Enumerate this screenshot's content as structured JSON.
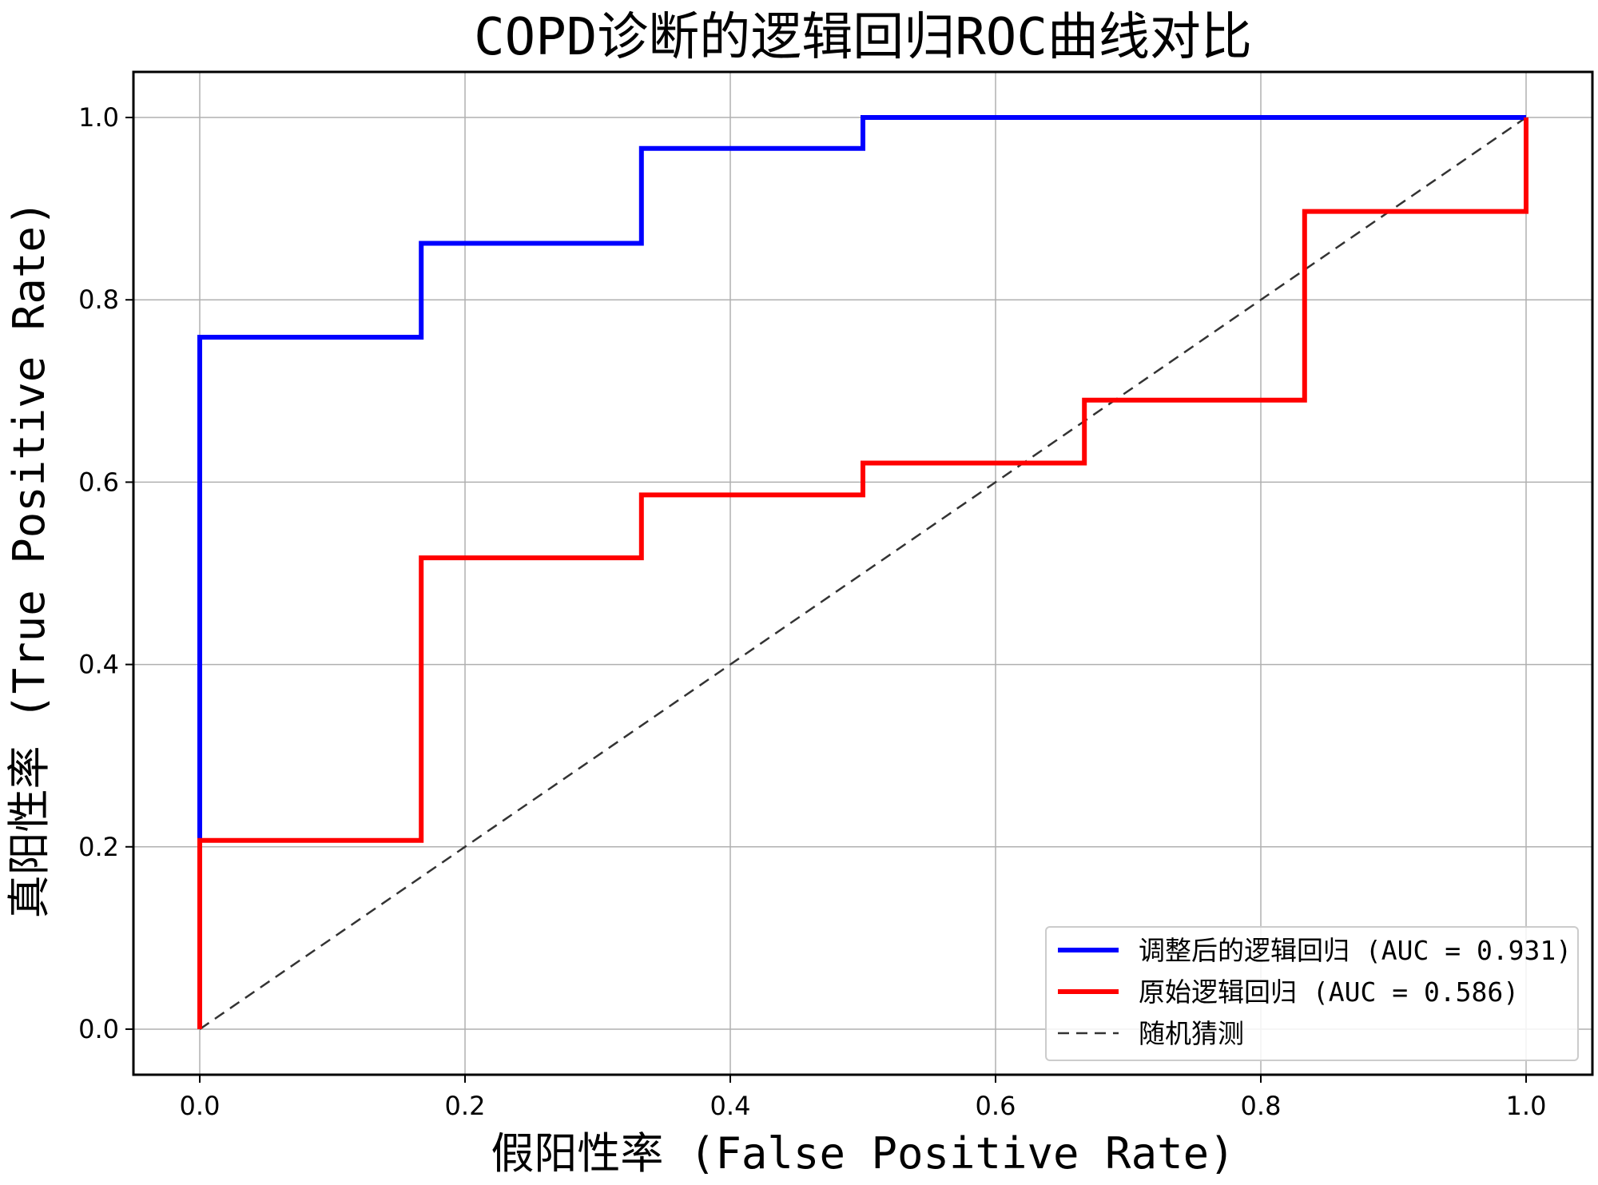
{
  "chart_data": {
    "type": "line",
    "title": "COPD诊断的逻辑回归ROC曲线对比",
    "xlabel": "假阳性率 (False Positive Rate)",
    "ylabel": "真阳性率 (True Positive Rate)",
    "xlim": [
      -0.05,
      1.05
    ],
    "ylim": [
      -0.05,
      1.05
    ],
    "xticks": [
      "0.0",
      "0.2",
      "0.4",
      "0.6",
      "0.8",
      "1.0"
    ],
    "yticks": [
      "0.0",
      "0.2",
      "0.4",
      "0.6",
      "0.8",
      "1.0"
    ],
    "grid": true,
    "legend_position": "lower-right",
    "series": [
      {
        "name": "调整后的逻辑回归 (AUC = 0.931)",
        "color": "#0000ff",
        "style": "solid",
        "x": [
          0,
          0,
          0,
          0.167,
          0.167,
          0.333,
          0.333,
          0.5,
          0.5,
          1.0
        ],
        "y": [
          0,
          0.207,
          0.759,
          0.759,
          0.862,
          0.862,
          0.966,
          0.966,
          1.0,
          1.0
        ]
      },
      {
        "name": "原始逻辑回归 (AUC = 0.586)",
        "color": "#ff0000",
        "style": "solid",
        "x": [
          0,
          0,
          0.167,
          0.167,
          0.333,
          0.333,
          0.5,
          0.5,
          0.667,
          0.667,
          0.833,
          0.833,
          1.0,
          1.0
        ],
        "y": [
          0,
          0.207,
          0.207,
          0.517,
          0.517,
          0.586,
          0.586,
          0.621,
          0.621,
          0.69,
          0.69,
          0.897,
          0.897,
          1.0
        ]
      },
      {
        "name": "随机猜测",
        "color": "#333333",
        "style": "dashed",
        "x": [
          0,
          1
        ],
        "y": [
          0,
          1
        ]
      }
    ]
  }
}
